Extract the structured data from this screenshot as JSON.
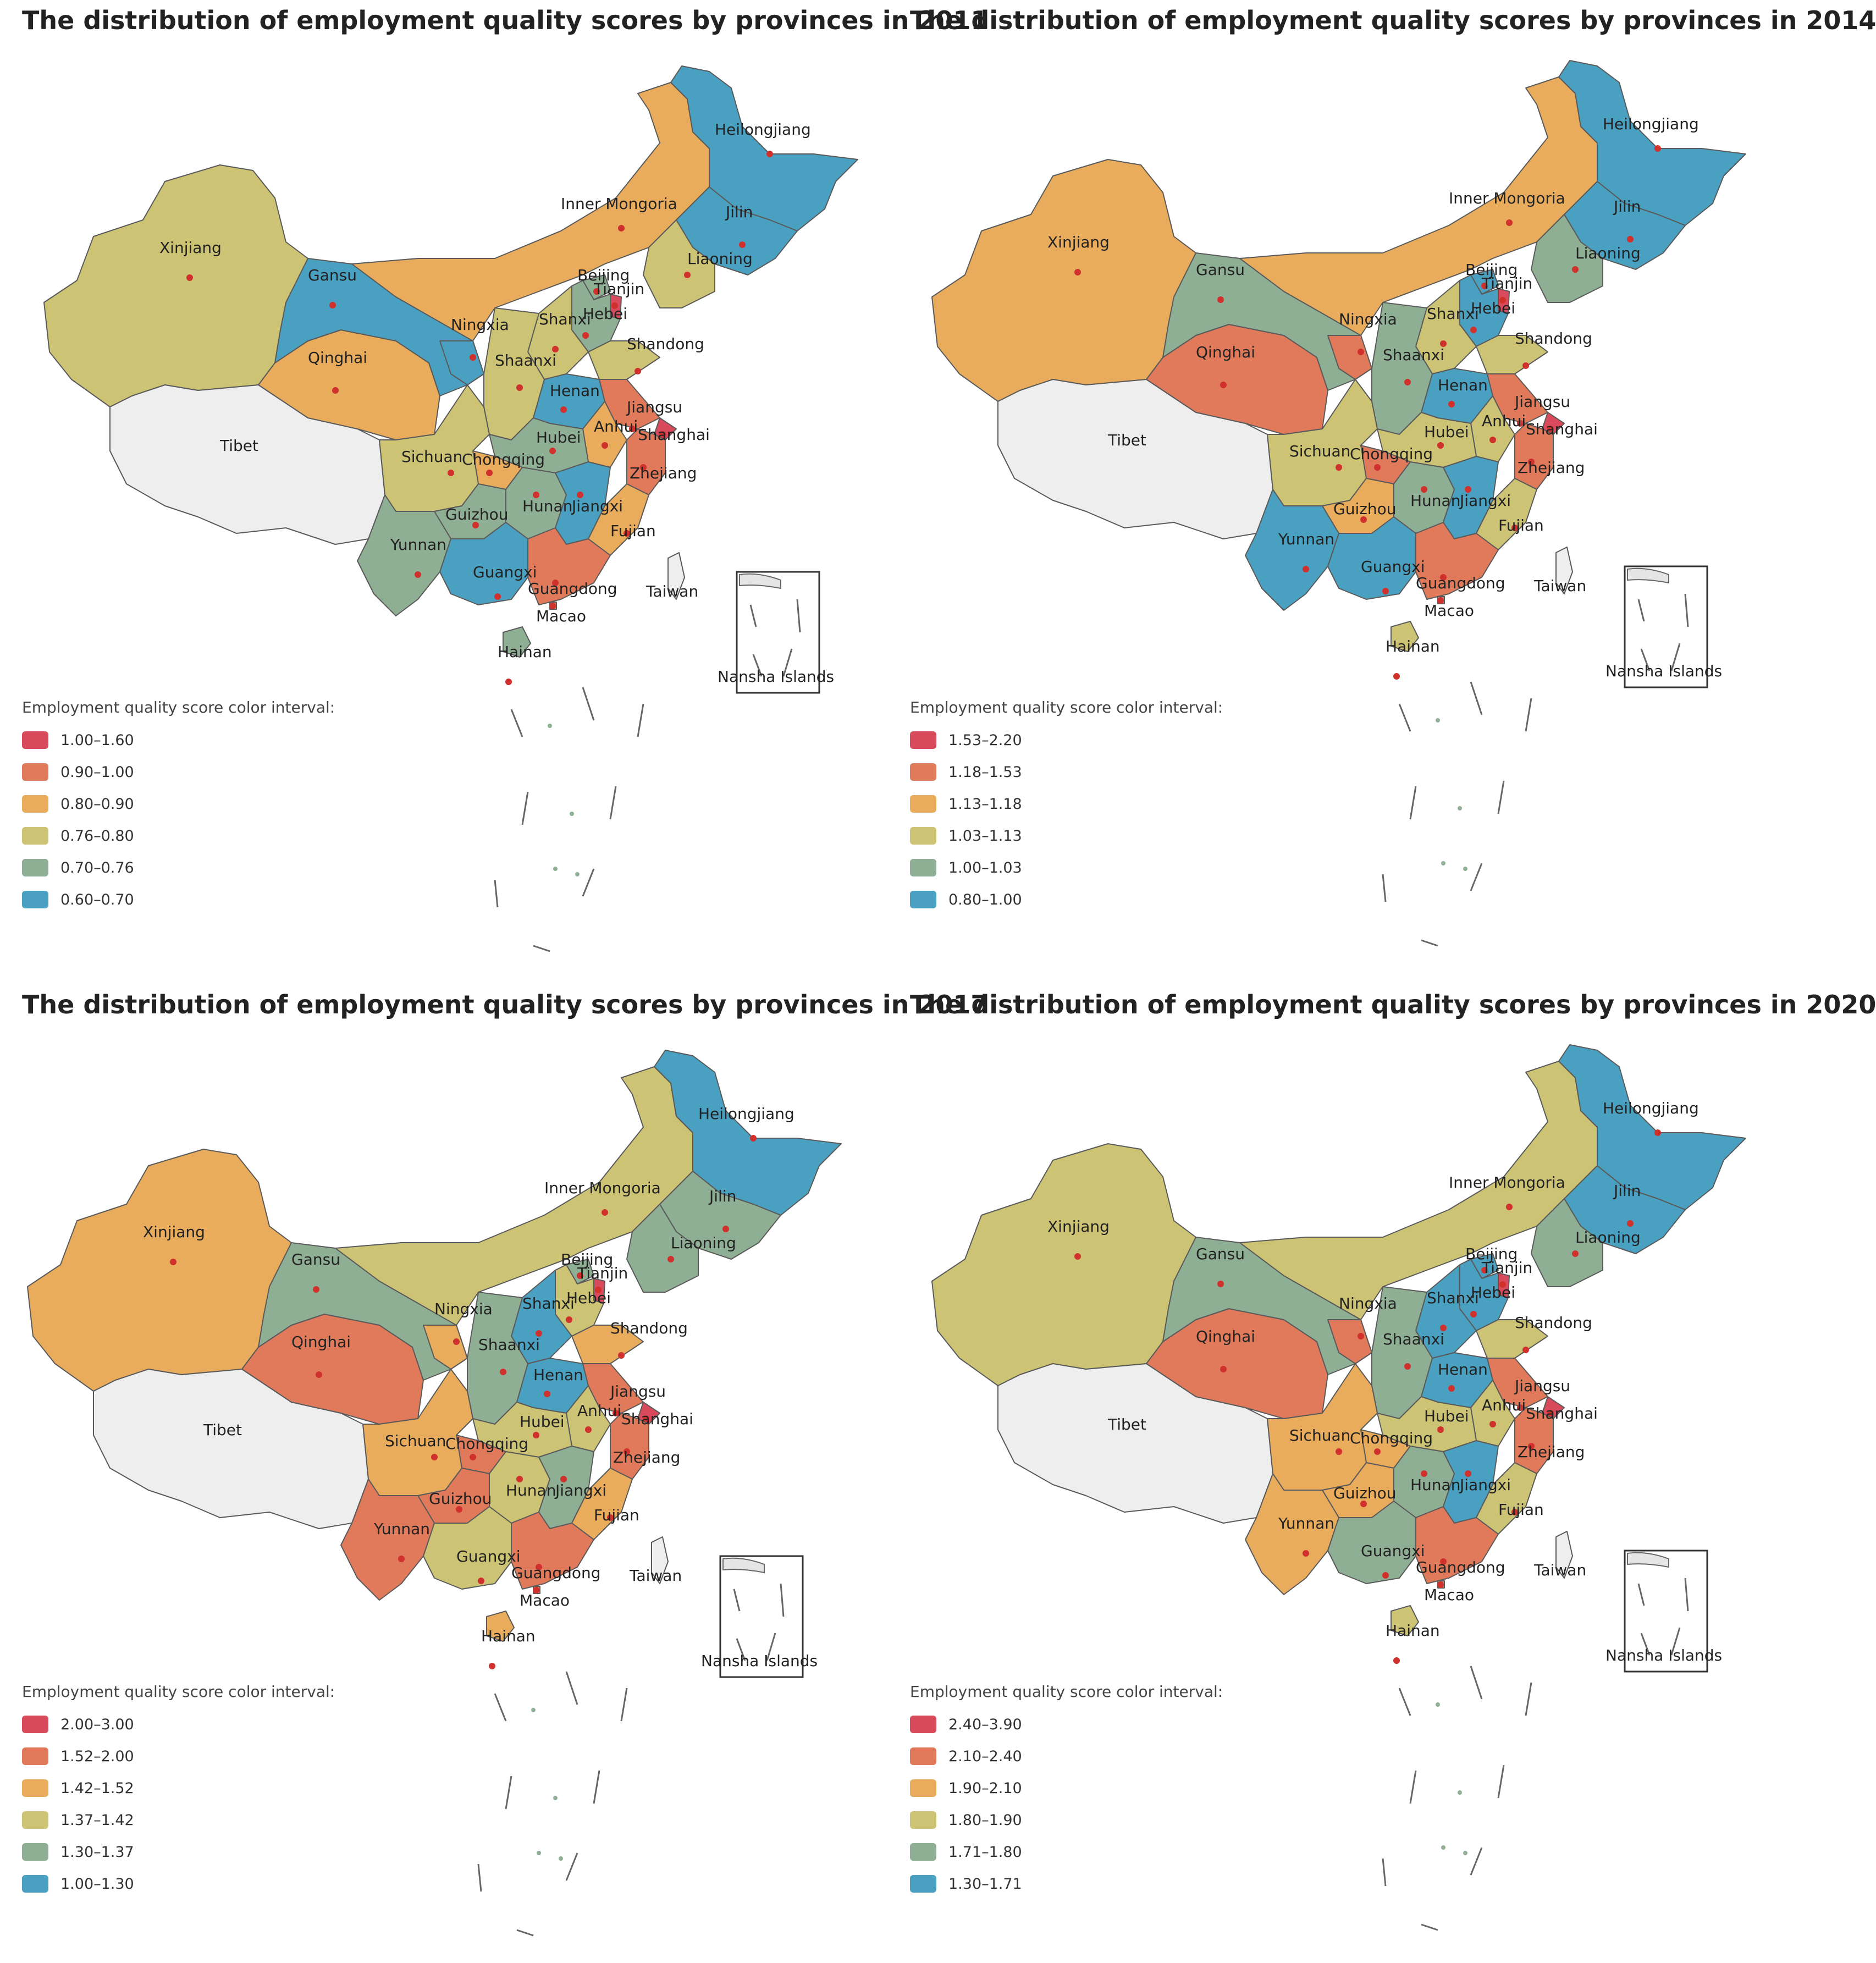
{
  "maps": [
    {
      "title": "The distribution of employment quality scores by provinces in 2011",
      "legend_title": "Employment quality score color interval:",
      "intervals": [
        "1.00–1.60",
        "0.90–1.00",
        "0.80–0.90",
        "0.76–0.80",
        "0.70–0.76",
        "0.60–0.70"
      ],
      "province_class": {
        "Heilongjiang": 5,
        "Jilin": 5,
        "Liaoning": 3,
        "Inner Mongoria": 2,
        "Xinjiang": 3,
        "Tibet": -1,
        "Qinghai": 2,
        "Gansu": 5,
        "Ningxia": 5,
        "Shaanxi": 3,
        "Shanxi": 3,
        "Hebei": 4,
        "Beijing": 4,
        "Tianjin": 0,
        "Shandong": 3,
        "Henan": 5,
        "Hubei": 4,
        "Anhui": 2,
        "Jiangsu": 1,
        "Shanghai": 0,
        "Zhejiang": 1,
        "Fujian": 2,
        "Jiangxi": 5,
        "Hunan": 4,
        "Guizhou": 4,
        "Yunnan": 4,
        "Sichuan": 3,
        "Chongqing": 2,
        "Guangxi": 5,
        "Guangdong": 1,
        "Hainan": 4,
        "Taiwan": -1,
        "Macao": 1
      }
    },
    {
      "title": "The distribution of employment quality scores by provinces in 2014",
      "legend_title": "Employment quality score color interval:",
      "intervals": [
        "1.53–2.20",
        "1.18–1.53",
        "1.13–1.18",
        "1.03–1.13",
        "1.00–1.03",
        "0.80–1.00"
      ],
      "province_class": {
        "Heilongjiang": 5,
        "Jilin": 5,
        "Liaoning": 4,
        "Inner Mongoria": 2,
        "Xinjiang": 2,
        "Tibet": -1,
        "Qinghai": 1,
        "Gansu": 4,
        "Ningxia": 1,
        "Shaanxi": 4,
        "Shanxi": 3,
        "Hebei": 5,
        "Beijing": 5,
        "Tianjin": 0,
        "Shandong": 3,
        "Henan": 5,
        "Hubei": 3,
        "Anhui": 3,
        "Jiangsu": 1,
        "Shanghai": 0,
        "Zhejiang": 1,
        "Fujian": 3,
        "Jiangxi": 5,
        "Hunan": 4,
        "Guizhou": 2,
        "Yunnan": 5,
        "Sichuan": 3,
        "Chongqing": 1,
        "Guangxi": 5,
        "Guangdong": 1,
        "Hainan": 3,
        "Taiwan": -1,
        "Macao": 1
      }
    },
    {
      "title": "The distribution of employment quality scores by provinces in 2017",
      "legend_title": "Employment quality score color interval:",
      "intervals": [
        "2.00–3.00",
        "1.52–2.00",
        "1.42–1.52",
        "1.37–1.42",
        "1.30–1.37",
        "1.00–1.30"
      ],
      "province_class": {
        "Heilongjiang": 5,
        "Jilin": 4,
        "Liaoning": 4,
        "Inner Mongoria": 3,
        "Xinjiang": 2,
        "Tibet": -1,
        "Qinghai": 1,
        "Gansu": 4,
        "Ningxia": 2,
        "Shaanxi": 4,
        "Shanxi": 5,
        "Hebei": 3,
        "Beijing": 4,
        "Tianjin": 0,
        "Shandong": 2,
        "Henan": 5,
        "Hubei": 3,
        "Anhui": 3,
        "Jiangsu": 1,
        "Shanghai": 0,
        "Zhejiang": 1,
        "Fujian": 2,
        "Jiangxi": 4,
        "Hunan": 3,
        "Guizhou": 1,
        "Yunnan": 1,
        "Sichuan": 2,
        "Chongqing": 1,
        "Guangxi": 3,
        "Guangdong": 1,
        "Hainan": 2,
        "Taiwan": -1,
        "Macao": 1
      }
    },
    {
      "title": "The distribution of employment quality scores by provinces in 2020",
      "legend_title": "Employment quality score color interval:",
      "intervals": [
        "2.40–3.90",
        "2.10–2.40",
        "1.90–2.10",
        "1.80–1.90",
        "1.71–1.80",
        "1.30–1.71"
      ],
      "province_class": {
        "Heilongjiang": 5,
        "Jilin": 5,
        "Liaoning": 4,
        "Inner Mongoria": 3,
        "Xinjiang": 3,
        "Tibet": -1,
        "Qinghai": 1,
        "Gansu": 4,
        "Ningxia": 1,
        "Shaanxi": 4,
        "Shanxi": 5,
        "Hebei": 5,
        "Beijing": 5,
        "Tianjin": 0,
        "Shandong": 3,
        "Henan": 5,
        "Hubei": 3,
        "Anhui": 3,
        "Jiangsu": 1,
        "Shanghai": 0,
        "Zhejiang": 1,
        "Fujian": 3,
        "Jiangxi": 5,
        "Hunan": 4,
        "Guizhou": 2,
        "Yunnan": 2,
        "Sichuan": 2,
        "Chongqing": 2,
        "Guangxi": 4,
        "Guangdong": 1,
        "Hainan": 3,
        "Taiwan": -1,
        "Macao": 1
      }
    }
  ],
  "palette": [
    "#d94a5c",
    "#e07a5a",
    "#e9ac5c",
    "#cdc374",
    "#8faf94",
    "#4aa0c0"
  ],
  "no_data_color": "#eeeeee",
  "inset_label": "Nansha Islands"
}
